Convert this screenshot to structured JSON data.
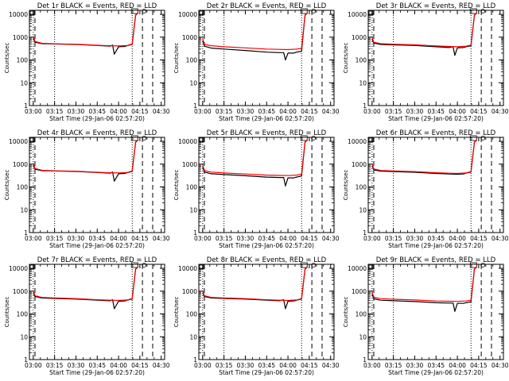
{
  "chart_data": [
    {
      "type": "line",
      "title": "Det 1r BLACK = Events, RED = LLD",
      "xlabel": "Start Time (29-Jan-06 02:57:20)",
      "ylabel": "Counts/sec",
      "x_tick_labels": [
        "03:00",
        "03:15",
        "03:30",
        "03:45",
        "04:00",
        "04:15",
        "04:30"
      ],
      "y_tick_labels": [
        "1",
        "10",
        "100",
        "1000",
        "10000"
      ],
      "ylog": true,
      "ylim": [
        1,
        10000
      ],
      "series": [
        {
          "color": "#000000",
          "x": [
            3.0,
            3.02,
            3.1,
            3.25,
            3.5,
            3.75,
            3.9,
            3.93,
            3.95,
            4.0,
            4.07,
            4.1,
            4.16,
            4.2,
            4.23
          ],
          "y": [
            900,
            600,
            520,
            500,
            480,
            430,
            400,
            450,
            180,
            380,
            390,
            420,
            480,
            9000,
            12000
          ]
        },
        {
          "color": "#ff0000",
          "x": [
            3.0,
            3.02,
            3.1,
            3.25,
            3.5,
            3.75,
            3.9,
            4.0,
            4.1,
            4.16,
            4.2,
            4.23
          ],
          "y": [
            1100,
            650,
            540,
            510,
            490,
            440,
            420,
            410,
            430,
            500,
            9500,
            12000
          ]
        }
      ]
    },
    {
      "type": "line",
      "title": "Det 2r BLACK = Events, RED = LLD",
      "xlabel": "Start Time (29-Jan-06 02:57:20)",
      "ylabel": "Counts/sec",
      "x_tick_labels": [
        "03:00",
        "03:15",
        "03:30",
        "03:45",
        "04:00",
        "04:15",
        "04:30"
      ],
      "y_tick_labels": [
        "1",
        "10",
        "100",
        "1000",
        "10000"
      ],
      "ylog": true,
      "ylim": [
        1,
        10000
      ],
      "series": [
        {
          "color": "#000000",
          "x": [
            3.0,
            3.02,
            3.1,
            3.25,
            3.5,
            3.75,
            3.9,
            3.95,
            3.97,
            4.0,
            4.07,
            4.1,
            4.16,
            4.2,
            4.23
          ],
          "y": [
            700,
            400,
            330,
            300,
            260,
            220,
            210,
            210,
            100,
            200,
            200,
            220,
            240,
            9000,
            12000
          ]
        },
        {
          "color": "#ff0000",
          "x": [
            3.0,
            3.02,
            3.1,
            3.25,
            3.5,
            3.75,
            3.9,
            4.0,
            4.1,
            4.16,
            4.2,
            4.23
          ],
          "y": [
            900,
            480,
            420,
            380,
            340,
            300,
            290,
            285,
            300,
            320,
            9500,
            12000
          ]
        }
      ]
    },
    {
      "type": "line",
      "title": "Det 3r BLACK = Events, RED = LLD",
      "xlabel": "Start Time (29-Jan-06 02:57:20)",
      "ylabel": "Counts/sec",
      "x_tick_labels": [
        "03:00",
        "03:15",
        "03:30",
        "03:45",
        "04:00",
        "04:15",
        "04:30"
      ],
      "y_tick_labels": [
        "1",
        "10",
        "100",
        "1000",
        "10000"
      ],
      "ylog": true,
      "ylim": [
        1,
        10000
      ],
      "series": [
        {
          "color": "#000000",
          "x": [
            3.0,
            3.02,
            3.1,
            3.25,
            3.5,
            3.75,
            3.9,
            3.95,
            3.97,
            4.0,
            4.07,
            4.1,
            4.16,
            4.2,
            4.23
          ],
          "y": [
            800,
            550,
            480,
            460,
            430,
            380,
            350,
            380,
            160,
            340,
            350,
            380,
            420,
            9000,
            12000
          ]
        },
        {
          "color": "#ff0000",
          "x": [
            3.0,
            3.02,
            3.1,
            3.25,
            3.5,
            3.75,
            3.9,
            4.0,
            4.1,
            4.16,
            4.2,
            4.23
          ],
          "y": [
            1000,
            600,
            520,
            490,
            460,
            410,
            390,
            380,
            400,
            450,
            9500,
            12000
          ]
        }
      ]
    },
    {
      "type": "line",
      "title": "Det 4r BLACK = Events, RED = LLD",
      "xlabel": "Start Time (29-Jan-06 02:57:20)",
      "ylabel": "Counts/sec",
      "x_tick_labels": [
        "03:00",
        "03:15",
        "03:30",
        "03:45",
        "04:00",
        "04:15",
        "04:30"
      ],
      "y_tick_labels": [
        "1",
        "10",
        "100",
        "1000",
        "10000"
      ],
      "ylog": true,
      "ylim": [
        1,
        10000
      ],
      "series": [
        {
          "color": "#000000",
          "x": [
            3.0,
            3.02,
            3.1,
            3.25,
            3.5,
            3.75,
            3.9,
            3.93,
            3.95,
            4.0,
            4.07,
            4.1,
            4.16,
            4.2,
            4.23
          ],
          "y": [
            900,
            600,
            520,
            500,
            480,
            430,
            400,
            450,
            180,
            380,
            390,
            420,
            480,
            9000,
            12000
          ]
        },
        {
          "color": "#ff0000",
          "x": [
            3.0,
            3.02,
            3.1,
            3.25,
            3.5,
            3.75,
            3.9,
            4.0,
            4.1,
            4.16,
            4.2,
            4.23
          ],
          "y": [
            1100,
            650,
            540,
            510,
            490,
            440,
            420,
            410,
            430,
            500,
            9500,
            12000
          ]
        }
      ]
    },
    {
      "type": "line",
      "title": "Det 5r BLACK = Events, RED = LLD",
      "xlabel": "Start Time (29-Jan-06 02:57:20)",
      "ylabel": "Counts/sec",
      "x_tick_labels": [
        "03:00",
        "03:15",
        "03:30",
        "03:45",
        "04:00",
        "04:15",
        "04:30"
      ],
      "y_tick_labels": [
        "1",
        "10",
        "100",
        "1000",
        "10000"
      ],
      "ylog": true,
      "ylim": [
        1,
        10000
      ],
      "series": [
        {
          "color": "#000000",
          "x": [
            3.0,
            3.02,
            3.1,
            3.25,
            3.5,
            3.75,
            3.9,
            3.95,
            3.97,
            4.0,
            4.07,
            4.1,
            4.16,
            4.2,
            4.23
          ],
          "y": [
            750,
            450,
            380,
            350,
            310,
            270,
            260,
            260,
            110,
            250,
            250,
            270,
            300,
            9000,
            12000
          ]
        },
        {
          "color": "#ff0000",
          "x": [
            3.0,
            3.02,
            3.1,
            3.25,
            3.5,
            3.75,
            3.9,
            4.0,
            4.1,
            4.16,
            4.2,
            4.23
          ],
          "y": [
            950,
            520,
            450,
            410,
            370,
            330,
            320,
            315,
            330,
            360,
            9500,
            12000
          ]
        }
      ]
    },
    {
      "type": "line",
      "title": "Det 6r BLACK = Events, RED = LLD",
      "xlabel": "Start Time (29-Jan-06 02:57:20)",
      "ylabel": "Counts/sec",
      "x_tick_labels": [
        "03:00",
        "03:15",
        "03:30",
        "03:45",
        "04:00",
        "04:15",
        "04:30"
      ],
      "y_tick_labels": [
        "1",
        "10",
        "100",
        "1000",
        "10000"
      ],
      "ylog": true,
      "ylim": [
        1,
        10000
      ],
      "series": [
        {
          "color": "#000000",
          "x": [
            3.0,
            3.02,
            3.1,
            3.25,
            3.5,
            3.75,
            3.9,
            4.0,
            4.07,
            4.1,
            4.16,
            4.2,
            4.23
          ],
          "y": [
            850,
            560,
            490,
            470,
            440,
            390,
            370,
            360,
            370,
            400,
            450,
            9000,
            12000
          ]
        },
        {
          "color": "#ff0000",
          "x": [
            3.0,
            3.02,
            3.1,
            3.25,
            3.5,
            3.75,
            3.9,
            4.0,
            4.1,
            4.16,
            4.2,
            4.23
          ],
          "y": [
            1050,
            620,
            530,
            500,
            470,
            420,
            400,
            390,
            410,
            470,
            9500,
            12000
          ]
        }
      ]
    },
    {
      "type": "line",
      "title": "Det 7r BLACK = Events, RED = LLD",
      "xlabel": "Start Time (29-Jan-06 02:57:20)",
      "ylabel": "Counts/sec",
      "x_tick_labels": [
        "03:00",
        "03:15",
        "03:30",
        "03:45",
        "04:00",
        "04:15",
        "04:30"
      ],
      "y_tick_labels": [
        "1",
        "10",
        "100",
        "1000",
        "10000"
      ],
      "ylog": true,
      "ylim": [
        1,
        10000
      ],
      "series": [
        {
          "color": "#000000",
          "x": [
            3.0,
            3.02,
            3.1,
            3.25,
            3.5,
            3.75,
            3.9,
            3.93,
            3.95,
            4.0,
            4.07,
            4.1,
            4.16,
            4.2,
            4.23
          ],
          "y": [
            850,
            580,
            500,
            480,
            450,
            400,
            380,
            420,
            170,
            360,
            370,
            400,
            450,
            9000,
            12000
          ]
        },
        {
          "color": "#ff0000",
          "x": [
            3.0,
            3.02,
            3.1,
            3.25,
            3.5,
            3.75,
            3.9,
            4.0,
            4.1,
            4.16,
            4.2,
            4.23
          ],
          "y": [
            1050,
            630,
            530,
            500,
            470,
            420,
            400,
            390,
            410,
            470,
            9500,
            12000
          ]
        }
      ]
    },
    {
      "type": "line",
      "title": "Det 8r BLACK = Events, RED = LLD",
      "xlabel": "Start Time (29-Jan-06 02:57:20)",
      "ylabel": "Counts/sec",
      "x_tick_labels": [
        "03:00",
        "03:15",
        "03:30",
        "03:45",
        "04:00",
        "04:15",
        "04:30"
      ],
      "y_tick_labels": [
        "1",
        "10",
        "100",
        "1000",
        "10000"
      ],
      "ylog": true,
      "ylim": [
        1,
        10000
      ],
      "series": [
        {
          "color": "#000000",
          "x": [
            3.0,
            3.02,
            3.1,
            3.25,
            3.5,
            3.75,
            3.9,
            3.95,
            3.97,
            4.0,
            4.07,
            4.1,
            4.16,
            4.2,
            4.23
          ],
          "y": [
            850,
            580,
            500,
            480,
            450,
            400,
            380,
            420,
            170,
            360,
            370,
            400,
            450,
            9000,
            12000
          ]
        },
        {
          "color": "#ff0000",
          "x": [
            3.0,
            3.02,
            3.1,
            3.25,
            3.5,
            3.75,
            3.9,
            4.0,
            4.1,
            4.16,
            4.2,
            4.23
          ],
          "y": [
            1050,
            630,
            530,
            500,
            470,
            420,
            400,
            390,
            410,
            470,
            9500,
            12000
          ]
        }
      ]
    },
    {
      "type": "line",
      "title": "Det 9r BLACK = Events, RED = LLD",
      "xlabel": "Start Time (29-Jan-06 02:57:20)",
      "ylabel": "Counts/sec",
      "x_tick_labels": [
        "03:00",
        "03:15",
        "03:30",
        "03:45",
        "04:00",
        "04:15",
        "04:30"
      ],
      "y_tick_labels": [
        "1",
        "10",
        "100",
        "1000",
        "10000"
      ],
      "ylog": true,
      "ylim": [
        1,
        10000
      ],
      "series": [
        {
          "color": "#000000",
          "x": [
            3.0,
            3.02,
            3.1,
            3.25,
            3.5,
            3.75,
            3.9,
            3.95,
            3.97,
            4.0,
            4.07,
            4.1,
            4.16,
            4.2,
            4.23
          ],
          "y": [
            750,
            460,
            400,
            380,
            350,
            310,
            300,
            300,
            130,
            290,
            290,
            310,
            340,
            9000,
            12000
          ]
        },
        {
          "color": "#ff0000",
          "x": [
            3.0,
            3.02,
            3.1,
            3.25,
            3.5,
            3.75,
            3.9,
            4.0,
            4.1,
            4.16,
            4.2,
            4.23
          ],
          "y": [
            950,
            540,
            470,
            440,
            410,
            370,
            360,
            355,
            370,
            400,
            9500,
            12000
          ]
        }
      ]
    }
  ]
}
